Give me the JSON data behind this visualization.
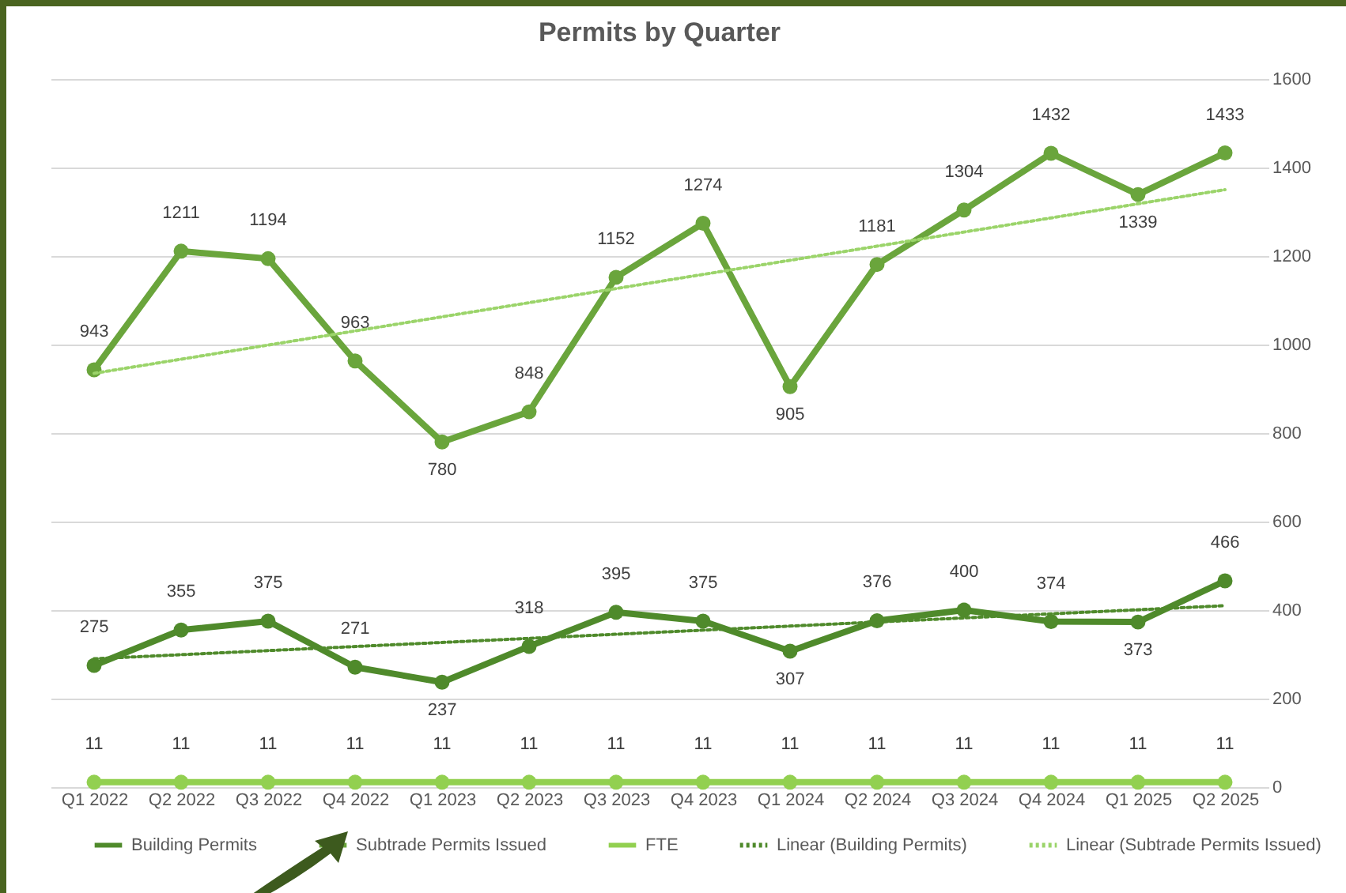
{
  "chart_data": {
    "type": "line",
    "title": "Permits by Quarter",
    "categories": [
      "Q1 2022",
      "Q2 2022",
      "Q3 2022",
      "Q4 2022",
      "Q1 2023",
      "Q2 2023",
      "Q3 2023",
      "Q4 2023",
      "Q1 2024",
      "Q2 2024",
      "Q3 2024",
      "Q4 2024",
      "Q1 2025",
      "Q2 2025"
    ],
    "series": [
      {
        "name": "Building Permits",
        "color": "#4f8a2b",
        "marker": "circle",
        "values": [
          275,
          355,
          375,
          271,
          237,
          318,
          395,
          375,
          307,
          376,
          400,
          374,
          373,
          466
        ],
        "value_labels": [
          "275",
          "355",
          "375",
          "271",
          "237",
          "318",
          "395",
          "375",
          "307",
          "376",
          "400",
          "374",
          "373",
          "466"
        ]
      },
      {
        "name": "Subtrade Permits Issued",
        "color": "#6aa53c",
        "marker": "circle",
        "values": [
          943,
          1211,
          1194,
          963,
          780,
          848,
          1152,
          1274,
          905,
          1181,
          1304,
          1432,
          1339,
          1433
        ],
        "value_labels": [
          "943",
          "1211",
          "1194",
          "963",
          "780",
          "848",
          "1152",
          "1274",
          "905",
          "1181",
          "1304",
          "1432",
          "1339",
          "1433"
        ]
      },
      {
        "name": "FTE",
        "color": "#92d050",
        "marker": "circle",
        "values": [
          11,
          11,
          11,
          11,
          11,
          11,
          11,
          11,
          11,
          11,
          11,
          11,
          11,
          11
        ],
        "value_labels": [
          "11",
          "11",
          "11",
          "11",
          "11",
          "11",
          "11",
          "11",
          "11",
          "11",
          "11",
          "11",
          "11",
          "11"
        ]
      },
      {
        "name": "Linear (Building Permits)",
        "color": "#4f8a2b",
        "line_style": "dotted",
        "marker": "none",
        "x": [
          "Q1 2022",
          "Q2 2025"
        ],
        "values": [
          290,
          410
        ]
      },
      {
        "name": "Linear (Subtrade Permits Issued)",
        "color": "#9bd46a",
        "line_style": "dotted",
        "marker": "none",
        "x": [
          "Q1 2022",
          "Q2 2025"
        ],
        "values": [
          935,
          1350
        ]
      }
    ],
    "ylim": [
      0,
      1600
    ],
    "yticks": [
      0,
      200,
      400,
      600,
      800,
      1000,
      1200,
      1400,
      1600
    ],
    "grid": "y",
    "legend": "bottom"
  }
}
